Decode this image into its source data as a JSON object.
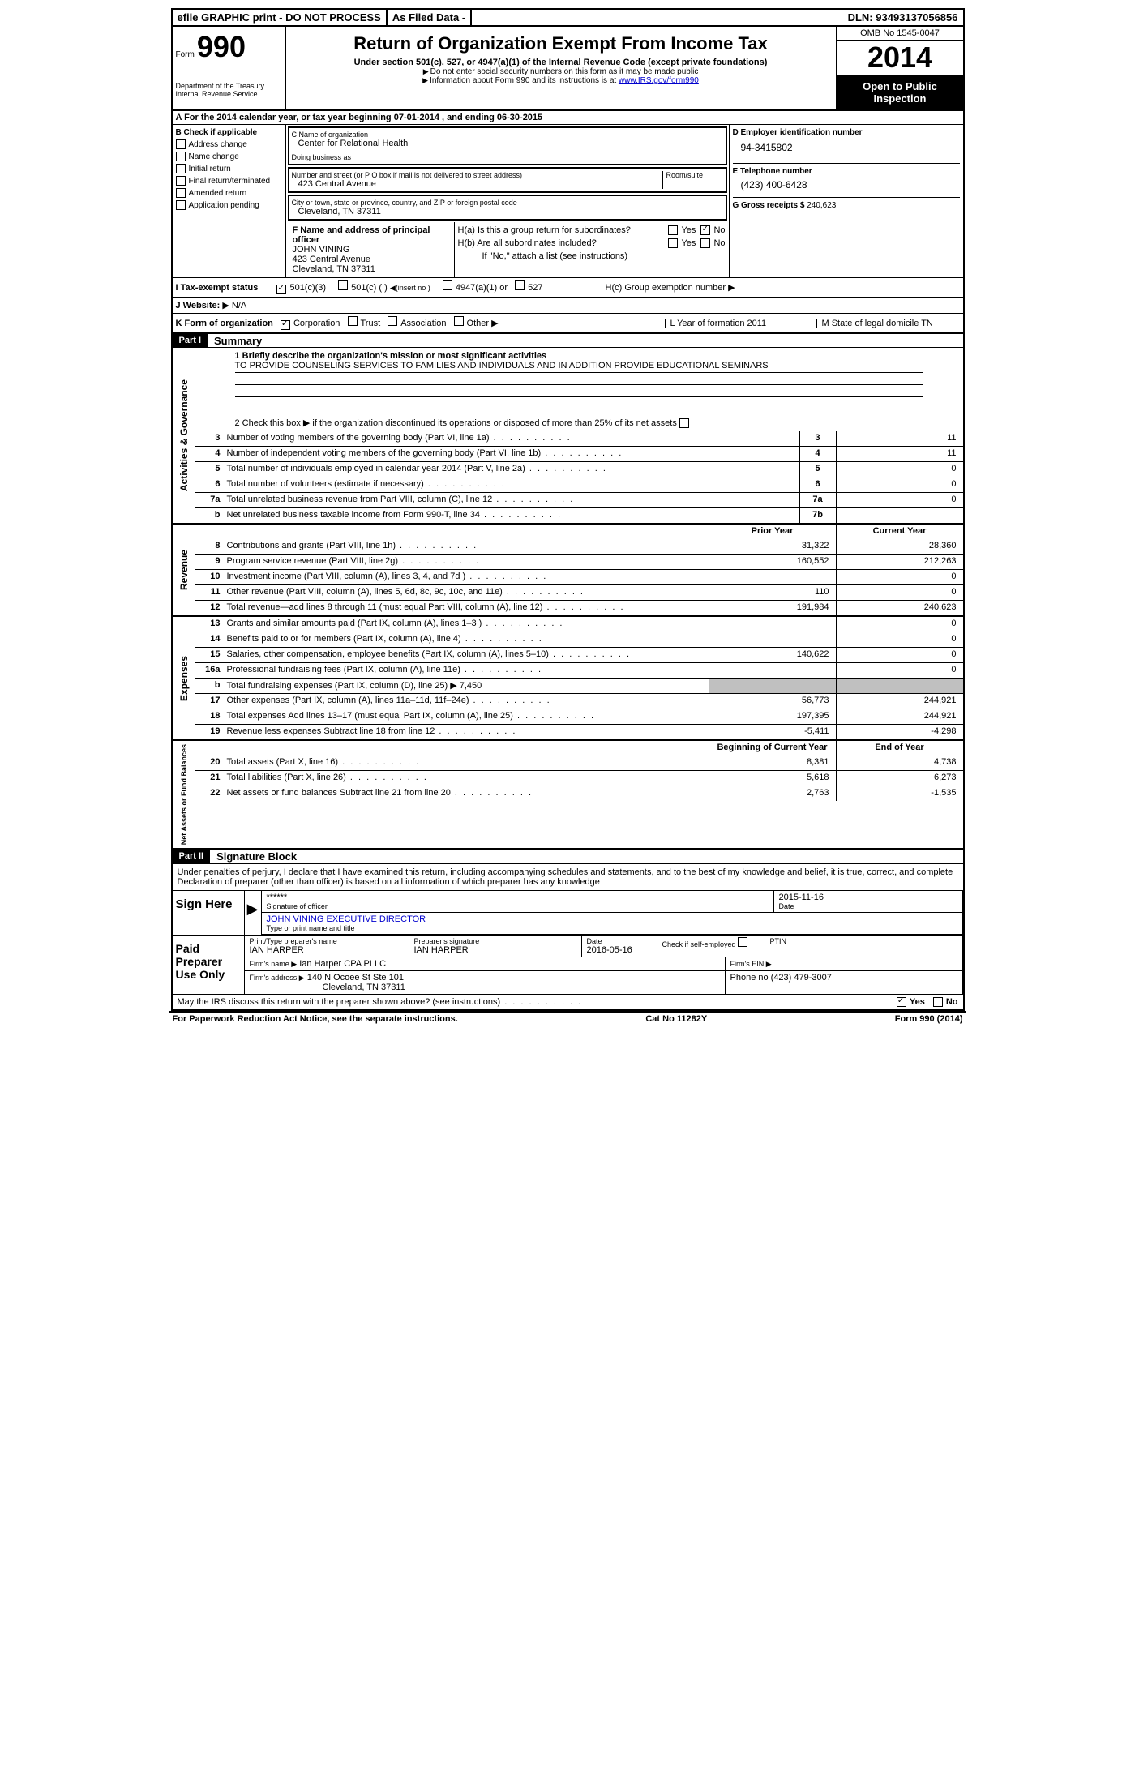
{
  "topbar": {
    "efile": "efile GRAPHIC print - DO NOT PROCESS",
    "asfiled": "As Filed Data -",
    "dln_label": "DLN:",
    "dln": "93493137056856"
  },
  "header": {
    "form_word": "Form",
    "form_number": "990",
    "dept1": "Department of the Treasury",
    "dept2": "Internal Revenue Service",
    "title": "Return of Organization Exempt From Income Tax",
    "subtitle": "Under section 501(c), 527, or 4947(a)(1) of the Internal Revenue Code (except private foundations)",
    "note1": "Do not enter social security numbers on this form as it may be made public",
    "note2_pre": "Information about Form 990 and its instructions is at ",
    "note2_link": "www.IRS.gov/form990",
    "omb": "OMB No 1545-0047",
    "year": "2014",
    "open1": "Open to Public",
    "open2": "Inspection"
  },
  "sectionA": {
    "text_pre": "A  For the 2014 calendar year, or tax year beginning ",
    "begin": "07-01-2014",
    "mid": " , and ending ",
    "end": "06-30-2015"
  },
  "colB": {
    "header": "B  Check if applicable",
    "items": [
      "Address change",
      "Name change",
      "Initial return",
      "Final return/terminated",
      "Amended return",
      "Application pending"
    ]
  },
  "boxC": {
    "c_label": "C Name of organization",
    "org_name": "Center for Relational Health",
    "dba_label": "Doing business as",
    "dba": "",
    "addr_label": "Number and street (or P O  box if mail is not delivered to street address)",
    "room_label": "Room/suite",
    "addr": "423 Central Avenue",
    "city_label": "City or town, state or province, country, and ZIP or foreign postal code",
    "city": "Cleveland, TN  37311"
  },
  "colD": {
    "d_label": "D Employer identification number",
    "ein": "94-3415802",
    "e_label": "E Telephone number",
    "phone": "(423) 400-6428",
    "g_label": "G Gross receipts $",
    "gross": "240,623"
  },
  "boxF": {
    "label": "F  Name and address of principal officer",
    "name": "JOHN VINING",
    "addr1": "423 Central Avenue",
    "addr2": "Cleveland, TN  37311"
  },
  "boxH": {
    "ha_label": "H(a)  Is this a group return for subordinates?",
    "hb_label": "H(b)  Are all subordinates included?",
    "hb_note": "If \"No,\" attach a list  (see instructions)",
    "hc_label": "H(c)  Group exemption number",
    "yes": "Yes",
    "no": "No"
  },
  "rowI": {
    "label": "I   Tax-exempt status",
    "opt1": "501(c)(3)",
    "opt2": "501(c) (   )",
    "opt2_note": "(insert no )",
    "opt3": "4947(a)(1) or",
    "opt4": "527"
  },
  "rowJ": {
    "label": "J   Website:",
    "value": "N/A"
  },
  "rowK": {
    "label": "K Form of organization",
    "opts": [
      "Corporation",
      "Trust",
      "Association",
      "Other"
    ],
    "l_label": "L Year of formation  2011",
    "m_label": "M State of legal domicile  TN"
  },
  "part1": {
    "num": "Part I",
    "title": "Summary"
  },
  "mission": {
    "line1_label": "1   Briefly describe the organization's mission or most significant activities",
    "text": "TO PROVIDE COUNSELING SERVICES TO FAMILIES AND INDIVIDUALS AND IN ADDITION PROVIDE EDUCATIONAL SEMINARS",
    "line2": "2   Check this box ▶  if the organization discontinued its operations or disposed of more than 25% of its net assets"
  },
  "lines_activities": [
    {
      "num": "3",
      "text": "Number of voting members of the governing body (Part VI, line 1a)",
      "col": "3",
      "val": "11"
    },
    {
      "num": "4",
      "text": "Number of independent voting members of the governing body (Part VI, line 1b)",
      "col": "4",
      "val": "11"
    },
    {
      "num": "5",
      "text": "Total number of individuals employed in calendar year 2014 (Part V, line 2a)",
      "col": "5",
      "val": "0"
    },
    {
      "num": "6",
      "text": "Total number of volunteers (estimate if necessary)",
      "col": "6",
      "val": "0"
    },
    {
      "num": "7a",
      "text": "Total unrelated business revenue from Part VIII, column (C), line 12",
      "col": "7a",
      "val": "0"
    },
    {
      "num": "b",
      "text": "Net unrelated business taxable income from Form 990-T, line 34",
      "col": "7b",
      "val": ""
    }
  ],
  "twocol_header": {
    "prior": "Prior Year",
    "current": "Current Year"
  },
  "revenue_label": "Revenue",
  "revenue": [
    {
      "num": "8",
      "text": "Contributions and grants (Part VIII, line 1h)",
      "prior": "31,322",
      "curr": "28,360"
    },
    {
      "num": "9",
      "text": "Program service revenue (Part VIII, line 2g)",
      "prior": "160,552",
      "curr": "212,263"
    },
    {
      "num": "10",
      "text": "Investment income (Part VIII, column (A), lines 3, 4, and 7d )",
      "prior": "",
      "curr": "0"
    },
    {
      "num": "11",
      "text": "Other revenue (Part VIII, column (A), lines 5, 6d, 8c, 9c, 10c, and 11e)",
      "prior": "110",
      "curr": "0"
    },
    {
      "num": "12",
      "text": "Total revenue—add lines 8 through 11 (must equal Part VIII, column (A), line 12)",
      "prior": "191,984",
      "curr": "240,623"
    }
  ],
  "expenses_label": "Expenses",
  "expenses": [
    {
      "num": "13",
      "text": "Grants and similar amounts paid (Part IX, column (A), lines 1–3 )",
      "prior": "",
      "curr": "0"
    },
    {
      "num": "14",
      "text": "Benefits paid to or for members (Part IX, column (A), line 4)",
      "prior": "",
      "curr": "0"
    },
    {
      "num": "15",
      "text": "Salaries, other compensation, employee benefits (Part IX, column (A), lines 5–10)",
      "prior": "140,622",
      "curr": "0"
    },
    {
      "num": "16a",
      "text": "Professional fundraising fees (Part IX, column (A), line 11e)",
      "prior": "",
      "curr": "0"
    },
    {
      "num": "b",
      "text": "Total fundraising expenses (Part IX, column (D), line 25) ▶ 7,450",
      "prior": "—shaded—",
      "curr": "—shaded—"
    },
    {
      "num": "17",
      "text": "Other expenses (Part IX, column (A), lines 11a–11d, 11f–24e)",
      "prior": "56,773",
      "curr": "244,921"
    },
    {
      "num": "18",
      "text": "Total expenses  Add lines 13–17 (must equal Part IX, column (A), line 25)",
      "prior": "197,395",
      "curr": "244,921"
    },
    {
      "num": "19",
      "text": "Revenue less expenses  Subtract line 18 from line 12",
      "prior": "-5,411",
      "curr": "-4,298"
    }
  ],
  "netassets_label": "Net Assets or Fund Balances",
  "netassets_header": {
    "begin": "Beginning of Current Year",
    "end": "End of Year"
  },
  "netassets": [
    {
      "num": "20",
      "text": "Total assets (Part X, line 16)",
      "begin": "8,381",
      "end": "4,738"
    },
    {
      "num": "21",
      "text": "Total liabilities (Part X, line 26)",
      "begin": "5,618",
      "end": "6,273"
    },
    {
      "num": "22",
      "text": "Net assets or fund balances  Subtract line 21 from line 20",
      "begin": "2,763",
      "end": "-1,535"
    }
  ],
  "part2": {
    "num": "Part II",
    "title": "Signature Block"
  },
  "perjury": "Under penalties of perjury, I declare that I have examined this return, including accompanying schedules and statements, and to the best of my knowledge and belief, it is true, correct, and complete  Declaration of preparer (other than officer) is based on all information of which preparer has any knowledge",
  "sign": {
    "label": "Sign Here",
    "stars": "******",
    "sig_label": "Signature of officer",
    "date": "2015-11-16",
    "date_label": "Date",
    "name": "JOHN VINING EXECUTIVE DIRECTOR",
    "name_label": "Type or print name and title"
  },
  "preparer": {
    "label": "Paid Preparer Use Only",
    "name_label": "Print/Type preparer's name",
    "name": "IAN HARPER",
    "sig_label": "Preparer's signature",
    "sig": "IAN HARPER",
    "date_label": "Date",
    "date": "2016-05-16",
    "check_label": "Check  if self-employed",
    "ptin_label": "PTIN",
    "firm_name_label": "Firm's name   ▶",
    "firm_name": "Ian Harper CPA PLLC",
    "firm_ein_label": "Firm's EIN ▶",
    "firm_addr_label": "Firm's address ▶",
    "firm_addr1": "140 N Ocoee St Ste 101",
    "firm_addr2": "Cleveland, TN  37311",
    "phone_label": "Phone no  (423) 479-3007"
  },
  "discuss": {
    "text": "May the IRS discuss this return with the preparer shown above? (see instructions)",
    "yes": "Yes",
    "no": "No"
  },
  "footer": {
    "left": "For Paperwork Reduction Act Notice, see the separate instructions.",
    "center": "Cat No  11282Y",
    "right": "Form 990 (2014)"
  },
  "vlabels": {
    "activities": "Activities & Governance"
  }
}
